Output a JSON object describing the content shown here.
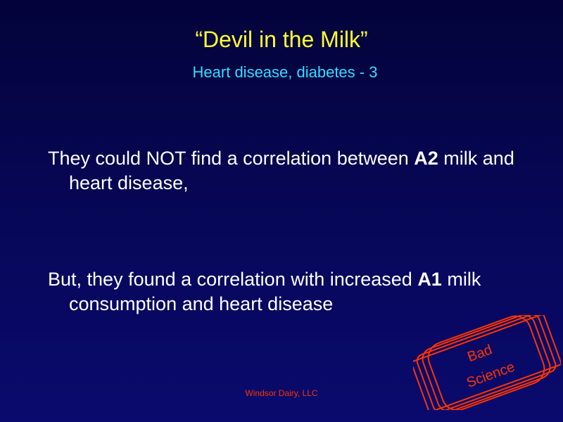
{
  "slide": {
    "title": "“Devil in the Milk”",
    "subtitle": "Heart disease, diabetes - 3",
    "paragraph1": {
      "before": "They could NOT find a correlation between ",
      "bold": "A2",
      "after": " milk and heart disease,"
    },
    "paragraph2": {
      "before": "But, they found a correlation with increased ",
      "bold": "A1",
      "after": " milk consumption and heart disease"
    },
    "footer": "Windsor Dairy, LLC"
  },
  "stamp": {
    "line1": "Bad",
    "line2": "Science",
    "color": "#ff3300"
  },
  "colors": {
    "title": "#ffff33",
    "subtitle": "#33ddff",
    "body_text": "#ffffff",
    "background": "#07075a"
  }
}
